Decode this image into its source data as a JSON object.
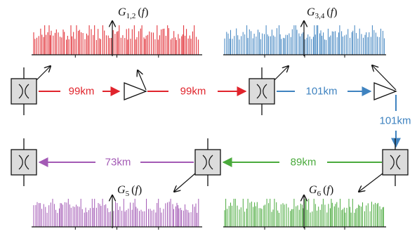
{
  "colors": {
    "red": "#e0242c",
    "blue": "#3f83c0",
    "green": "#4aaa3c",
    "purple": "#a35ab5",
    "box_fill": "#dcdcdc",
    "stroke": "#111111"
  },
  "spectra": [
    {
      "id": "g12",
      "symbol": "G",
      "subscript": "1,2",
      "variable": "f",
      "color_key": "red"
    },
    {
      "id": "g34",
      "symbol": "G",
      "subscript": "3,4",
      "variable": "f",
      "color_key": "blue"
    },
    {
      "id": "g5",
      "symbol": "G",
      "subscript": "5",
      "variable": "f",
      "color_key": "purple"
    },
    {
      "id": "g6",
      "symbol": "G",
      "subscript": "6",
      "variable": "f",
      "color_key": "green"
    }
  ],
  "spans": [
    {
      "id": "span1",
      "label": "99km",
      "color_key": "red"
    },
    {
      "id": "span2",
      "label": "99km",
      "color_key": "red"
    },
    {
      "id": "span3",
      "label": "101km",
      "color_key": "blue"
    },
    {
      "id": "span4",
      "label": "101km",
      "color_key": "blue"
    },
    {
      "id": "span5",
      "label": "89km",
      "color_key": "green"
    },
    {
      "id": "span6",
      "label": "73km",
      "color_key": "purple"
    }
  ],
  "nodes": [
    {
      "id": "node-1",
      "icon": "switch-x-icon"
    },
    {
      "id": "node-2",
      "icon": "switch-x-icon"
    },
    {
      "id": "node-3",
      "icon": "switch-x-icon"
    },
    {
      "id": "node-4",
      "icon": "switch-x-icon"
    },
    {
      "id": "node-5",
      "icon": "switch-x-icon"
    }
  ],
  "amplifiers": [
    {
      "id": "amp-1",
      "icon": "amplifier-triangle-icon"
    },
    {
      "id": "amp-2",
      "icon": "amplifier-triangle-icon"
    }
  ]
}
